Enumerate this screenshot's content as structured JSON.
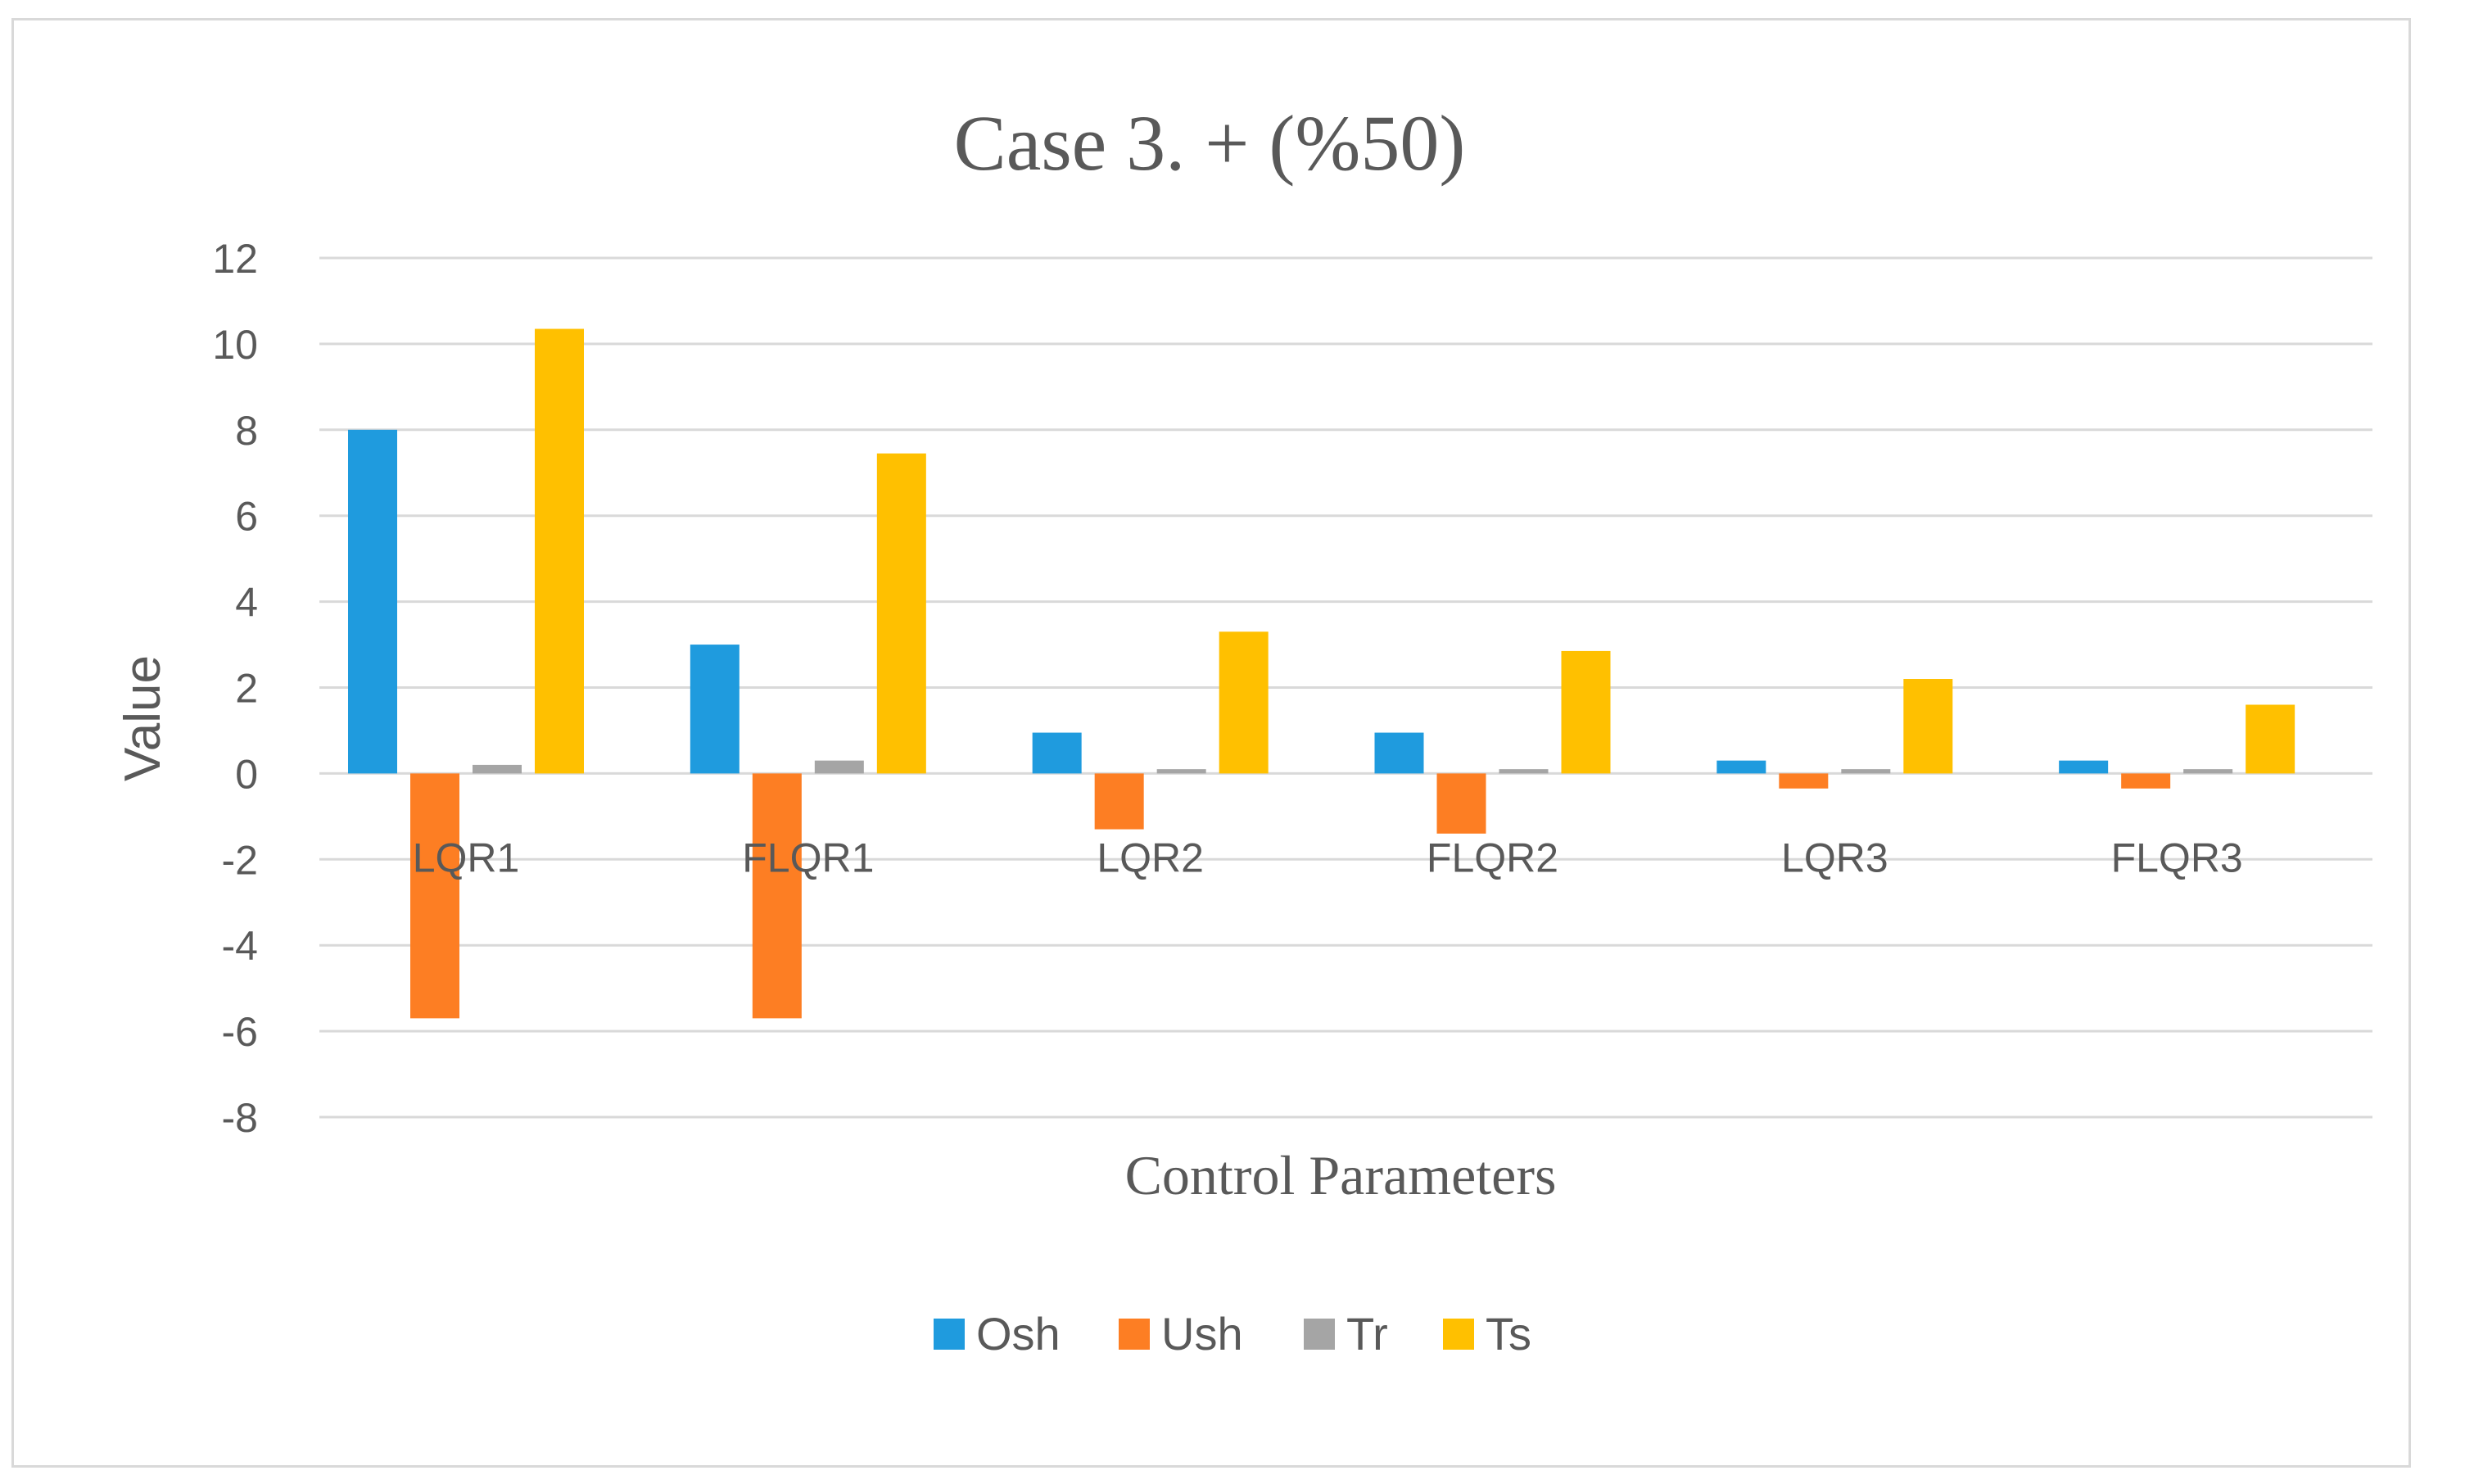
{
  "chart_data": {
    "type": "bar",
    "title": "Case 3. + (%50)",
    "xlabel": "Control Parameters",
    "ylabel": "Value",
    "categories": [
      "LQR1",
      "FLQR1",
      "LQR2",
      "FLQR2",
      "LQR3",
      "FLQR3"
    ],
    "series": [
      {
        "name": "Osh",
        "color": "#1f9bde",
        "values": [
          8.0,
          3.0,
          0.95,
          0.95,
          0.3,
          0.3
        ]
      },
      {
        "name": "Ush",
        "color": "#fd7e23",
        "values": [
          -5.7,
          -5.7,
          -1.3,
          -1.4,
          -0.35,
          -0.35
        ]
      },
      {
        "name": "Tr",
        "color": "#a5a5a5",
        "values": [
          0.2,
          0.3,
          0.1,
          0.1,
          0.1,
          0.1
        ]
      },
      {
        "name": "Ts",
        "color": "#ffc000",
        "values": [
          10.35,
          7.45,
          3.3,
          2.85,
          2.2,
          1.6
        ]
      }
    ],
    "ylim": [
      -8,
      12
    ],
    "yticks": [
      12,
      10,
      8,
      6,
      4,
      2,
      0,
      -2,
      -4,
      -6,
      -8
    ],
    "grid": true,
    "legend_position": "bottom"
  }
}
